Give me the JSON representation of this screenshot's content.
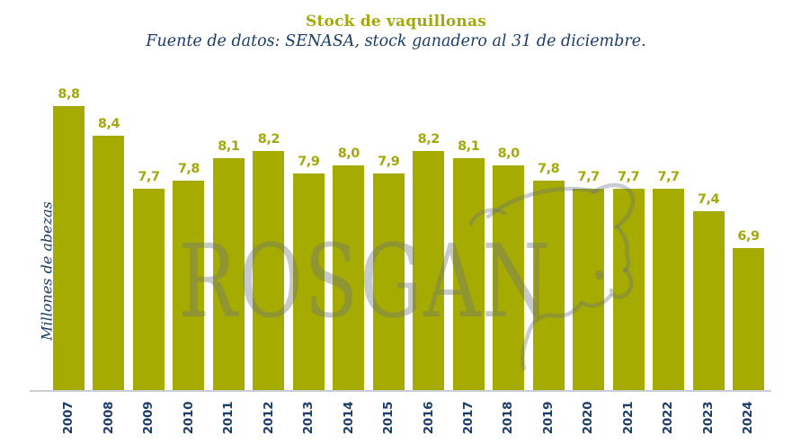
{
  "header": {
    "title": "Stock de vaquillonas",
    "subtitle": "Fuente de datos: SENASA, stock ganadero al 31 de diciembre."
  },
  "y_axis": {
    "label": "Millones de abezas"
  },
  "watermark": {
    "text": "ROSGAN",
    "icon": "bull-head-outline"
  },
  "colors": {
    "bar": "#a6ab00",
    "title": "#a4a90b",
    "navy_text": "#1c3d6b",
    "axis_line": "#c9cdd6",
    "watermark": "rgba(105,115,130,0.38)"
  },
  "chart_data": {
    "type": "bar",
    "title": "Stock de vaquillonas",
    "subtitle": "Fuente de datos: SENASA, stock ganadero al 31 de diciembre.",
    "xlabel": "",
    "ylabel": "Millones de abezas",
    "categories": [
      "2007",
      "2008",
      "2009",
      "2010",
      "2011",
      "2012",
      "2013",
      "2014",
      "2015",
      "2016",
      "2017",
      "2018",
      "2019",
      "2020",
      "2021",
      "2022",
      "2023",
      "2024"
    ],
    "values": [
      8.8,
      8.4,
      7.7,
      7.8,
      8.1,
      8.2,
      7.9,
      8.0,
      7.9,
      8.2,
      8.1,
      8.0,
      7.8,
      7.7,
      7.7,
      7.7,
      7.4,
      6.9
    ],
    "value_labels": [
      "8,8",
      "8,4",
      "7,7",
      "7,8",
      "8,1",
      "8,2",
      "7,9",
      "8,0",
      "7,9",
      "8,2",
      "8,1",
      "8,0",
      "7,8",
      "7,7",
      "7,7",
      "7,7",
      "7,4",
      "6,9"
    ],
    "ylim": [
      5.0,
      9.0
    ],
    "grid": false,
    "legend": null,
    "bar_color": "#a6ab00",
    "data_labels_shown": true,
    "x_tick_rotation": 90
  }
}
